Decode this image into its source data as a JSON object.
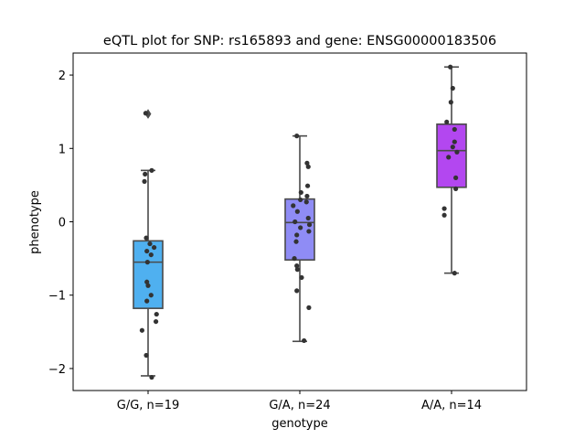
{
  "chart_data": {
    "type": "box",
    "title": "eQTL plot for SNP: rs165893 and gene: ENSG00000183506",
    "xlabel": "genotype",
    "ylabel": "phenotype",
    "ylim": [
      -2.3,
      2.3
    ],
    "yticks": [
      -2,
      -1,
      0,
      1,
      2
    ],
    "categories": [
      "G/G, n=19",
      "G/A, n=24",
      "A/A, n=14"
    ],
    "colors": [
      "#4fb0f0",
      "#8f8cf5",
      "#b347f0"
    ],
    "boxes": [
      {
        "q1": -1.18,
        "median": -0.55,
        "q3": -0.26,
        "whisker_low": -2.1,
        "whisker_high": 0.7,
        "outliers": [
          1.47
        ]
      },
      {
        "q1": -0.52,
        "median": -0.01,
        "q3": 0.31,
        "whisker_low": -1.63,
        "whisker_high": 1.17,
        "outliers": []
      },
      {
        "q1": 0.47,
        "median": 0.97,
        "q3": 1.33,
        "whisker_low": -0.7,
        "whisker_high": 2.11,
        "outliers": []
      }
    ],
    "points": [
      [
        [
          -0.04,
          1.48
        ],
        [
          -0.05,
          0.65
        ],
        [
          0.06,
          0.7
        ],
        [
          -0.06,
          0.55
        ],
        [
          -0.03,
          -0.22
        ],
        [
          -0.02,
          -0.4
        ],
        [
          0.03,
          -0.3
        ],
        [
          0.1,
          -0.35
        ],
        [
          0.05,
          -0.45
        ],
        [
          -0.01,
          -0.55
        ],
        [
          -0.02,
          -0.82
        ],
        [
          0.0,
          -0.87
        ],
        [
          0.05,
          -1.0
        ],
        [
          -0.02,
          -1.08
        ],
        [
          0.14,
          -1.26
        ],
        [
          0.13,
          -1.36
        ],
        [
          -0.1,
          -1.48
        ],
        [
          -0.03,
          -1.82
        ],
        [
          0.06,
          -2.12
        ]
      ],
      [
        [
          -0.05,
          1.17
        ],
        [
          0.12,
          0.8
        ],
        [
          0.14,
          0.75
        ],
        [
          0.13,
          0.49
        ],
        [
          0.02,
          0.4
        ],
        [
          0.12,
          0.35
        ],
        [
          0.01,
          0.3
        ],
        [
          0.11,
          0.27
        ],
        [
          -0.11,
          0.22
        ],
        [
          -0.04,
          0.14
        ],
        [
          0.14,
          0.05
        ],
        [
          -0.08,
          0.0
        ],
        [
          0.16,
          -0.04
        ],
        [
          0.01,
          -0.08
        ],
        [
          0.15,
          -0.13
        ],
        [
          -0.05,
          -0.18
        ],
        [
          -0.06,
          -0.27
        ],
        [
          -0.09,
          -0.5
        ],
        [
          -0.05,
          -0.6
        ],
        [
          -0.04,
          -0.65
        ],
        [
          0.03,
          -0.76
        ],
        [
          -0.05,
          -0.94
        ],
        [
          0.15,
          -1.17
        ],
        [
          0.07,
          -1.62
        ]
      ],
      [
        [
          -0.02,
          2.11
        ],
        [
          0.02,
          1.82
        ],
        [
          -0.01,
          1.63
        ],
        [
          -0.08,
          1.36
        ],
        [
          0.05,
          1.26
        ],
        [
          0.05,
          1.09
        ],
        [
          0.02,
          1.02
        ],
        [
          0.09,
          0.95
        ],
        [
          -0.05,
          0.88
        ],
        [
          0.07,
          0.6
        ],
        [
          0.07,
          0.45
        ],
        [
          -0.12,
          0.18
        ],
        [
          -0.12,
          0.09
        ],
        [
          0.05,
          -0.7
        ]
      ]
    ]
  }
}
